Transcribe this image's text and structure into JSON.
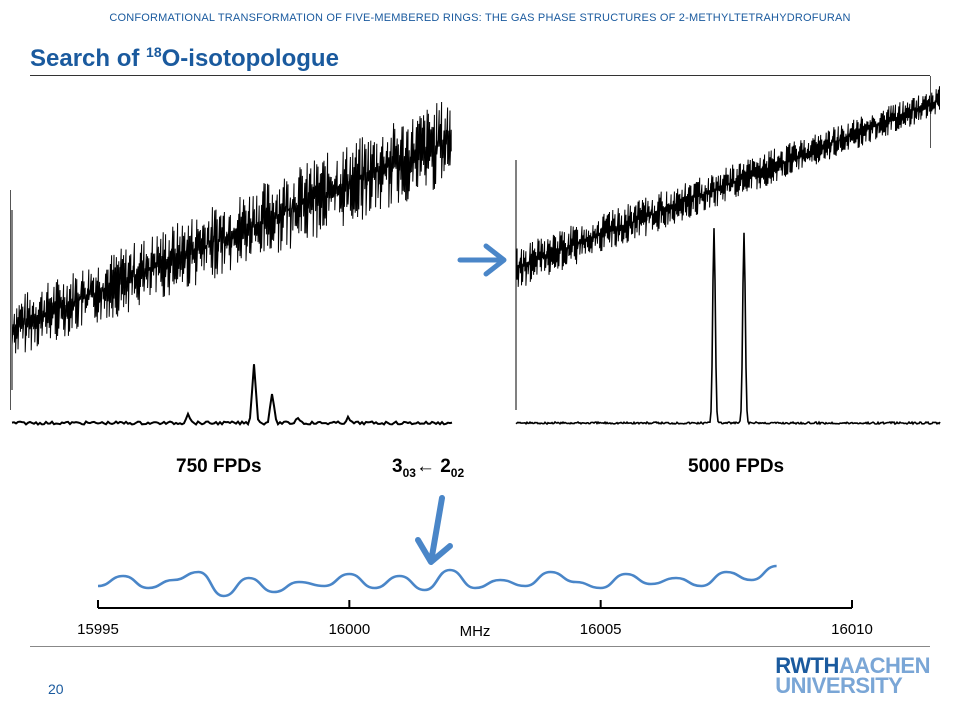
{
  "header": {
    "running_title": "CONFORMATIONAL TRANSFORMATION OF FIVE-MEMBERED RINGS: THE GAS PHASE STRUCTURES OF 2-METHYLTETRAHYDROFURAN"
  },
  "slide": {
    "title_prefix": "Search of ",
    "title_sup": "18",
    "title_suffix": "O-isotopologue"
  },
  "spectra": {
    "left_label": "750 FPDs",
    "right_label": "5000 FPDs",
    "transition": {
      "upper_j": "3",
      "upper_sub": "03",
      "arrow": "←",
      "lower_j": "2",
      "lower_sub": "02"
    }
  },
  "chart_data": {
    "type": "line",
    "title": "",
    "xlabel": "MHz",
    "ylabel": "",
    "xlim": [
      15995,
      16010
    ],
    "x_ticks": [
      15995,
      16000,
      16005,
      16010
    ],
    "series": [
      {
        "color": "#4a86c8",
        "x": [
          15995.0,
          15995.5,
          15996.0,
          15996.5,
          15997.0,
          15997.5,
          15998.0,
          15998.5,
          15999.0,
          15999.5,
          16000.0,
          16000.5,
          16001.0,
          16001.5,
          16002.0,
          16002.5,
          16003.0,
          16003.5,
          16004.0,
          16004.5,
          16005.0,
          16005.5,
          16006.0,
          16006.5,
          16007.0,
          16007.5,
          16008.0,
          16008.5
        ],
        "values": [
          0.2,
          0.7,
          0.1,
          0.5,
          0.9,
          -0.3,
          0.6,
          -0.1,
          0.4,
          0.2,
          0.8,
          0.1,
          0.7,
          0.0,
          1.0,
          0.1,
          0.5,
          0.2,
          0.9,
          0.4,
          0.1,
          0.8,
          0.3,
          0.6,
          0.2,
          0.9,
          0.5,
          1.2
        ]
      }
    ]
  },
  "footer": {
    "page_number": "20",
    "logo_bold": "RWTH",
    "logo_light": "AACHEN",
    "logo_second": "UNIVERSITY"
  }
}
